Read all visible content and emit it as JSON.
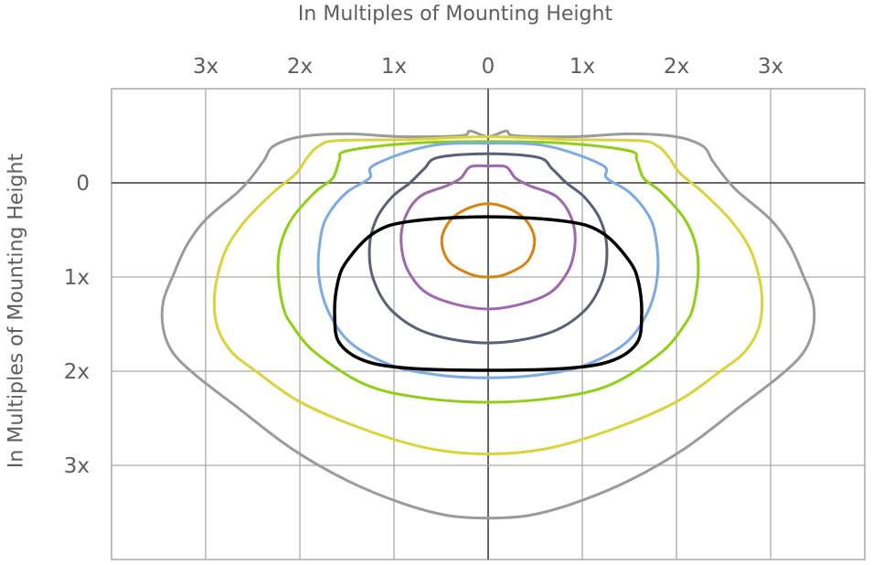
{
  "chart_data": {
    "type": "line",
    "subtype": "isoline-contours",
    "xlabel": "In Multiples of Mounting Height",
    "ylabel": "In Multiples of Mounting Height",
    "xlim": [
      -4,
      4
    ],
    "ylim": [
      -1,
      4
    ],
    "y_direction": "down",
    "grid": true,
    "x_axis_position": "top",
    "x_ticks": [
      {
        "value": -3,
        "label": "3x"
      },
      {
        "value": -2,
        "label": "2x"
      },
      {
        "value": -1,
        "label": "1x"
      },
      {
        "value": 0,
        "label": "0"
      },
      {
        "value": 1,
        "label": "1x"
      },
      {
        "value": 2,
        "label": "2x"
      },
      {
        "value": 3,
        "label": "3x"
      }
    ],
    "y_ticks": [
      {
        "value": 0,
        "label": "0"
      },
      {
        "value": 1,
        "label": "1x"
      },
      {
        "value": 2,
        "label": "2x"
      },
      {
        "value": 3,
        "label": "3x"
      }
    ],
    "series_symmetric_about_x0": true,
    "series": [
      {
        "color": "#9b9b9b",
        "half_profile": [
          [
            0,
            -0.49
          ],
          [
            -0.19,
            -0.55
          ],
          [
            -0.29,
            -0.5
          ],
          [
            -0.92,
            -0.49
          ],
          [
            -1.5,
            -0.52
          ],
          [
            -1.99,
            -0.49
          ],
          [
            -2.28,
            -0.39
          ],
          [
            -2.38,
            -0.24
          ],
          [
            -2.52,
            -0.05
          ],
          [
            -2.66,
            0.1
          ],
          [
            -3.0,
            0.39
          ],
          [
            -3.2,
            0.66
          ],
          [
            -3.34,
            0.97
          ],
          [
            -3.45,
            1.26
          ],
          [
            -3.45,
            1.55
          ],
          [
            -3.35,
            1.8
          ],
          [
            -3.11,
            2.04
          ],
          [
            -2.67,
            2.38
          ],
          [
            -2.09,
            2.82
          ],
          [
            -1.5,
            3.16
          ],
          [
            -0.92,
            3.4
          ],
          [
            -0.44,
            3.53
          ],
          [
            0,
            3.56
          ]
        ]
      },
      {
        "color": "#dcd23a",
        "half_profile": [
          [
            0,
            -0.49
          ],
          [
            -0.83,
            -0.46
          ],
          [
            -1.6,
            -0.45
          ],
          [
            -1.8,
            -0.39
          ],
          [
            -1.92,
            -0.27
          ],
          [
            -2.04,
            -0.1
          ],
          [
            -2.28,
            0.1
          ],
          [
            -2.57,
            0.39
          ],
          [
            -2.77,
            0.68
          ],
          [
            -2.87,
            0.97
          ],
          [
            -2.91,
            1.26
          ],
          [
            -2.87,
            1.55
          ],
          [
            -2.72,
            1.8
          ],
          [
            -2.48,
            1.99
          ],
          [
            -1.99,
            2.33
          ],
          [
            -1.31,
            2.62
          ],
          [
            -0.63,
            2.82
          ],
          [
            0,
            2.88
          ]
        ]
      },
      {
        "color": "#8fd014",
        "half_profile": [
          [
            0,
            -0.44
          ],
          [
            -0.83,
            -0.42
          ],
          [
            -1.5,
            -0.34
          ],
          [
            -1.58,
            -0.24
          ],
          [
            -1.65,
            -0.05
          ],
          [
            -1.84,
            0.1
          ],
          [
            -2.09,
            0.39
          ],
          [
            -2.21,
            0.68
          ],
          [
            -2.23,
            0.97
          ],
          [
            -2.18,
            1.31
          ],
          [
            -2.09,
            1.5
          ],
          [
            -1.84,
            1.8
          ],
          [
            -1.31,
            2.14
          ],
          [
            -0.73,
            2.28
          ],
          [
            0,
            2.33
          ]
        ]
      },
      {
        "color": "#7aaae8",
        "half_profile": [
          [
            0,
            -0.42
          ],
          [
            -0.63,
            -0.39
          ],
          [
            -1.21,
            -0.19
          ],
          [
            -1.26,
            -0.05
          ],
          [
            -1.5,
            0.1
          ],
          [
            -1.7,
            0.34
          ],
          [
            -1.78,
            0.58
          ],
          [
            -1.8,
            0.97
          ],
          [
            -1.7,
            1.36
          ],
          [
            -1.46,
            1.7
          ],
          [
            -1.02,
            1.94
          ],
          [
            -0.53,
            2.04
          ],
          [
            0,
            2.07
          ]
        ]
      },
      {
        "color": "#5a5f7a",
        "half_profile": [
          [
            0,
            -0.31
          ],
          [
            -0.53,
            -0.27
          ],
          [
            -0.68,
            -0.15
          ],
          [
            -0.83,
            0
          ],
          [
            -1.02,
            0.15
          ],
          [
            -1.19,
            0.39
          ],
          [
            -1.26,
            0.68
          ],
          [
            -1.22,
            1.02
          ],
          [
            -1.02,
            1.36
          ],
          [
            -0.63,
            1.6
          ],
          [
            0,
            1.7
          ]
        ]
      },
      {
        "color": "#a066b0",
        "half_profile": [
          [
            0,
            -0.18
          ],
          [
            -0.19,
            -0.17
          ],
          [
            -0.29,
            -0.05
          ],
          [
            -0.44,
            0.03
          ],
          [
            -0.73,
            0.15
          ],
          [
            -0.89,
            0.39
          ],
          [
            -0.92,
            0.68
          ],
          [
            -0.83,
            0.97
          ],
          [
            -0.58,
            1.21
          ],
          [
            0,
            1.34
          ]
        ]
      },
      {
        "color": "#d9820f",
        "half_profile": [
          [
            0,
            0.22
          ],
          [
            -0.34,
            0.34
          ],
          [
            -0.49,
            0.58
          ],
          [
            -0.42,
            0.83
          ],
          [
            -0.19,
            0.97
          ],
          [
            0,
            1.0
          ]
        ]
      },
      {
        "color": "#000000",
        "half_profile": [
          [
            0,
            0.36
          ],
          [
            -0.83,
            0.41
          ],
          [
            -1.21,
            0.53
          ],
          [
            -1.5,
            0.83
          ],
          [
            -1.6,
            1.07
          ],
          [
            -1.63,
            1.41
          ],
          [
            -1.58,
            1.7
          ],
          [
            -1.31,
            1.89
          ],
          [
            -0.83,
            1.97
          ],
          [
            0,
            1.99
          ]
        ]
      }
    ]
  }
}
